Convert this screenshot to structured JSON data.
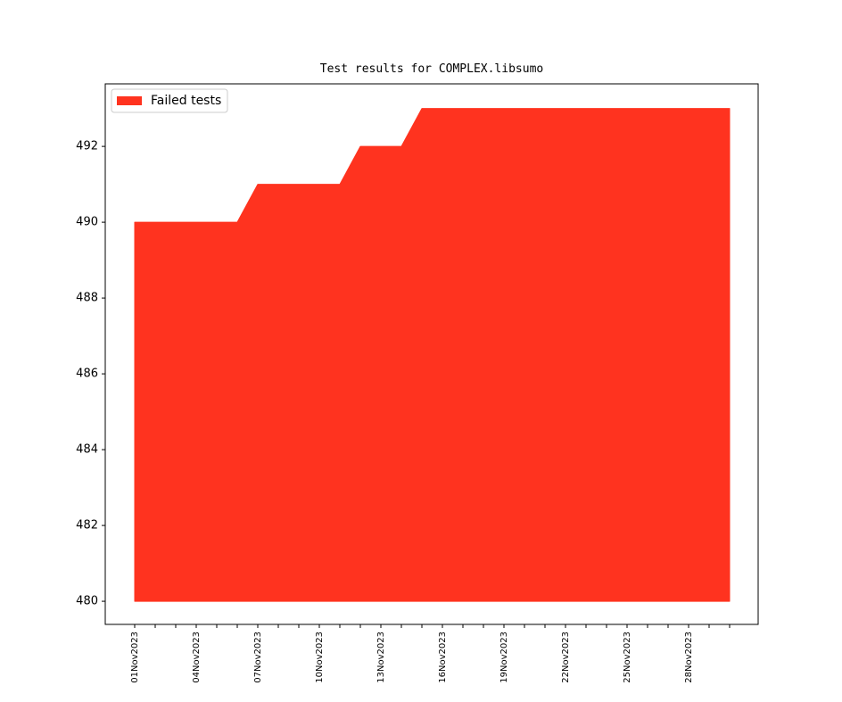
{
  "chart_data": {
    "type": "area",
    "title": "Test results for COMPLEX.libsumo",
    "categories": [
      "01Nov2023",
      null,
      null,
      "04Nov2023",
      null,
      null,
      "07Nov2023",
      null,
      null,
      "10Nov2023",
      null,
      null,
      "13Nov2023",
      null,
      null,
      "16Nov2023",
      null,
      null,
      "19Nov2023",
      null,
      null,
      "22Nov2023",
      null,
      null,
      "25Nov2023",
      null,
      null,
      "28Nov2023",
      null,
      null
    ],
    "series": [
      {
        "name": "Failed tests",
        "color": "#ff331f",
        "values": [
          490,
          490,
          490,
          490,
          490,
          490,
          491,
          491,
          491,
          491,
          491,
          492,
          492,
          492,
          493,
          493,
          493,
          493,
          493,
          493,
          493,
          493,
          493,
          493,
          493,
          493,
          493,
          493,
          493,
          493
        ]
      }
    ],
    "fill_base": 480,
    "ylim": [
      479.39,
      493.65
    ],
    "yticks": [
      480,
      482,
      484,
      486,
      488,
      490,
      492
    ],
    "legend": "upper left",
    "grid": false
  }
}
